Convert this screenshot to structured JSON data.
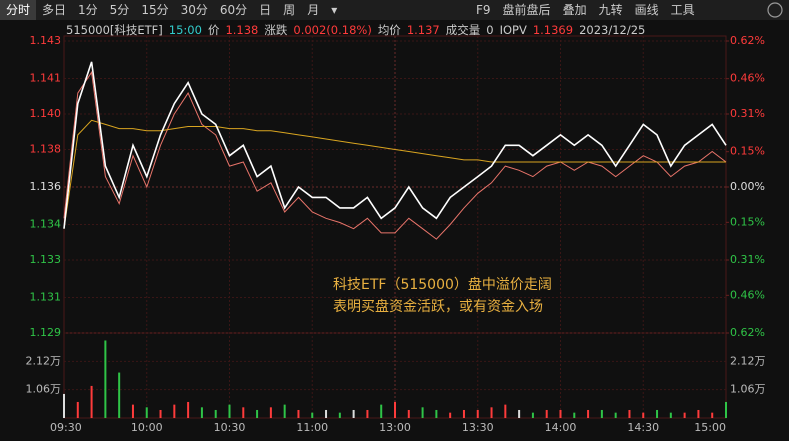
{
  "toolbar": {
    "left": [
      "分时",
      "多日",
      "1分",
      "5分",
      "15分",
      "30分",
      "60分",
      "日",
      "周",
      "月",
      "▾"
    ],
    "right": [
      "F9",
      "盘前盘后",
      "叠加",
      "九转",
      "画线",
      "工具"
    ]
  },
  "info": {
    "code": "515000[科技ETF]",
    "time": "15:00",
    "price_label": "价",
    "price": "1.138",
    "change_label": "涨跌",
    "change": "0.002(0.18%)",
    "avg_label": "均价",
    "avg": "1.137",
    "volume_label": "成交量",
    "volume": "0",
    "iopv_label": "IOPV",
    "iopv": "1.1369",
    "date": "2023/12/25"
  },
  "chart_data": [
    {
      "type": "line",
      "annotation": [
        "科技ETF（515000）盘中溢价走阔",
        "表明买盘资金活跃，或有资金入场"
      ],
      "xticks": [
        "09:30",
        "10:00",
        "10:30",
        "11:00",
        "13:00",
        "13:30",
        "14:00",
        "14:30",
        "15:00"
      ],
      "ylim": [
        1.129,
        1.143
      ],
      "yticks": [
        {
          "value": 1.143,
          "label": "1.143"
        },
        {
          "value": 1.1412,
          "label": "1.141"
        },
        {
          "value": 1.1395,
          "label": "1.140"
        },
        {
          "value": 1.1378,
          "label": "1.138"
        },
        {
          "value": 1.136,
          "label": "1.136"
        },
        {
          "value": 1.1342,
          "label": "1.134"
        },
        {
          "value": 1.1325,
          "label": "1.133"
        },
        {
          "value": 1.1307,
          "label": "1.131"
        },
        {
          "value": 1.129,
          "label": "1.129"
        }
      ],
      "y2lim": [
        -0.62,
        0.62
      ],
      "y2ticks": [
        {
          "value": 0.62,
          "label": "0.62%"
        },
        {
          "value": 0.46,
          "label": "0.46%"
        },
        {
          "value": 0.31,
          "label": "0.31%"
        },
        {
          "value": 0.15,
          "label": "0.15%"
        },
        {
          "value": 0,
          "label": "0.00%"
        },
        {
          "value": -0.15,
          "label": "0.15%"
        },
        {
          "value": -0.31,
          "label": "0.31%"
        },
        {
          "value": -0.46,
          "label": "0.46%"
        },
        {
          "value": -0.62,
          "label": "0.62%"
        }
      ],
      "up_color": "#ff3b3b",
      "down_color": "#2fc447",
      "flat_color": "#dddddd",
      "grid": true,
      "series": [
        {
          "color": "#e8746a",
          "values": [
            1.1345,
            1.1405,
            1.1415,
            1.1365,
            1.1352,
            1.1375,
            1.136,
            1.138,
            1.1395,
            1.1405,
            1.139,
            1.1385,
            1.137,
            1.1372,
            1.1358,
            1.1362,
            1.1348,
            1.1355,
            1.1348,
            1.1345,
            1.1343,
            1.134,
            1.1345,
            1.1338,
            1.1338,
            1.1345,
            1.134,
            1.1335,
            1.1342,
            1.135,
            1.1357,
            1.1362,
            1.137,
            1.1368,
            1.1365,
            1.137,
            1.1372,
            1.1368,
            1.1372,
            1.137,
            1.1365,
            1.137,
            1.1375,
            1.1372,
            1.1365,
            1.137,
            1.1372,
            1.1377,
            1.1372
          ]
        },
        {
          "color": "#d9a520",
          "values": [
            1.134,
            1.1385,
            1.1392,
            1.139,
            1.1388,
            1.1388,
            1.1387,
            1.1387,
            1.1388,
            1.1389,
            1.1389,
            1.1389,
            1.1388,
            1.1388,
            1.1387,
            1.1387,
            1.1386,
            1.1385,
            1.1384,
            1.1383,
            1.1382,
            1.1381,
            1.138,
            1.1379,
            1.1378,
            1.1377,
            1.1376,
            1.1375,
            1.1374,
            1.1373,
            1.1373,
            1.1372,
            1.1372,
            1.1372,
            1.1372,
            1.1372,
            1.1372,
            1.1372,
            1.1372,
            1.1372,
            1.1372,
            1.1372,
            1.1372,
            1.1372,
            1.1372,
            1.1372,
            1.1372,
            1.1372,
            1.1372
          ]
        },
        {
          "color": "#ffffff",
          "values": [
            1.134,
            1.14,
            1.142,
            1.137,
            1.1355,
            1.138,
            1.1365,
            1.1385,
            1.14,
            1.141,
            1.1395,
            1.139,
            1.1375,
            1.138,
            1.1365,
            1.137,
            1.135,
            1.136,
            1.1355,
            1.1355,
            1.135,
            1.135,
            1.1355,
            1.1345,
            1.135,
            1.136,
            1.135,
            1.1345,
            1.1355,
            1.136,
            1.1365,
            1.137,
            1.138,
            1.138,
            1.1375,
            1.138,
            1.1385,
            1.138,
            1.1385,
            1.138,
            1.137,
            1.138,
            1.139,
            1.1385,
            1.137,
            1.138,
            1.1385,
            1.139,
            1.138
          ]
        }
      ]
    },
    {
      "type": "bar",
      "ylim": [
        0,
        3.18
      ],
      "yticks": [
        {
          "value": 2.12,
          "label": "2.12万"
        },
        {
          "value": 1.06,
          "label": "1.06万"
        }
      ],
      "values": [
        0.9,
        0.6,
        1.2,
        2.9,
        1.7,
        0.5,
        0.4,
        0.3,
        0.5,
        0.6,
        0.4,
        0.3,
        0.5,
        0.4,
        0.3,
        0.4,
        0.5,
        0.3,
        0.2,
        0.3,
        0.2,
        0.3,
        0.3,
        0.5,
        0.6,
        0.3,
        0.4,
        0.3,
        0.2,
        0.3,
        0.3,
        0.4,
        0.5,
        0.3,
        0.2,
        0.3,
        0.3,
        0.2,
        0.3,
        0.3,
        0.2,
        0.3,
        0.2,
        0.3,
        0.2,
        0.2,
        0.3,
        0.2,
        0.6
      ]
    }
  ]
}
